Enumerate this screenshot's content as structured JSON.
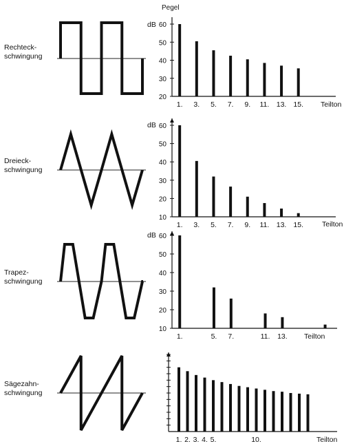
{
  "panels": [
    {
      "id": "rechteck",
      "name_lines": [
        "Rechteck-",
        "schwingung"
      ],
      "waveform": "square",
      "chart_data": {
        "type": "bar",
        "ylabel_top": "Pegel",
        "ylabel": "dB",
        "ylim": [
          20,
          60
        ],
        "yticks": [
          20,
          30,
          40,
          50,
          60
        ],
        "x": [
          1,
          3,
          5,
          7,
          9,
          11,
          13,
          15
        ],
        "values": [
          60,
          50.5,
          45.5,
          42.5,
          40.5,
          38.5,
          37,
          35.5
        ],
        "xlim": [
          0.5,
          19
        ],
        "tick_labels": [
          "1.",
          "3.",
          "5.",
          "7.",
          "9.",
          "11.",
          "13.",
          "15."
        ],
        "xlabel": "Teilton"
      }
    },
    {
      "id": "dreieck",
      "name_lines": [
        "Dreieck-",
        "schwingung"
      ],
      "waveform": "triangle",
      "chart_data": {
        "type": "bar",
        "ylabel": "dB",
        "ylim": [
          10,
          60
        ],
        "yticks": [
          10,
          20,
          30,
          40,
          50,
          60
        ],
        "x": [
          1,
          3,
          5,
          7,
          9,
          11,
          13,
          15
        ],
        "values": [
          60,
          40.5,
          32,
          26.5,
          21,
          17.5,
          14.5,
          12
        ],
        "xlim": [
          0.5,
          19
        ],
        "tick_labels": [
          "1.",
          "3.",
          "5.",
          "7.",
          "9.",
          "11.",
          "13.",
          "15."
        ],
        "xlabel": "Teilton"
      }
    },
    {
      "id": "trapez",
      "name_lines": [
        "Trapez-",
        "schwingung"
      ],
      "waveform": "trapezoid",
      "chart_data": {
        "type": "bar",
        "ylabel": "dB",
        "ylim": [
          10,
          60
        ],
        "yticks": [
          10,
          20,
          30,
          40,
          50,
          60
        ],
        "x": [
          1,
          5,
          7,
          11,
          13,
          18
        ],
        "values": [
          60,
          32,
          26,
          18,
          16,
          12
        ],
        "xlim": [
          0.5,
          19
        ],
        "tick_labels": [
          "1.",
          "5.",
          "7.",
          "11.",
          "13."
        ],
        "tick_x": [
          1,
          5,
          7,
          11,
          13
        ],
        "xlabel": "Teilton"
      }
    },
    {
      "id": "saegezahn",
      "name_lines": [
        "Sägezahn-",
        "schwingung"
      ],
      "waveform": "sawtooth",
      "chart_data": {
        "type": "bar",
        "ylim": [
          0,
          120
        ],
        "x": [
          1,
          2,
          3,
          4,
          5,
          6,
          7,
          8,
          9,
          10,
          11,
          12,
          13,
          14,
          15,
          16
        ],
        "values": [
          100,
          94,
          88,
          84,
          80,
          77,
          74,
          71,
          69,
          67,
          65,
          63,
          62,
          60,
          59,
          58
        ],
        "xlim": [
          0.2,
          19
        ],
        "tick_labels": [
          "1.",
          "2.",
          "3.",
          "4.",
          "5.",
          "10."
        ],
        "tick_x": [
          1,
          2,
          3,
          4,
          5,
          10
        ],
        "xlabel": "Teilton"
      }
    }
  ]
}
